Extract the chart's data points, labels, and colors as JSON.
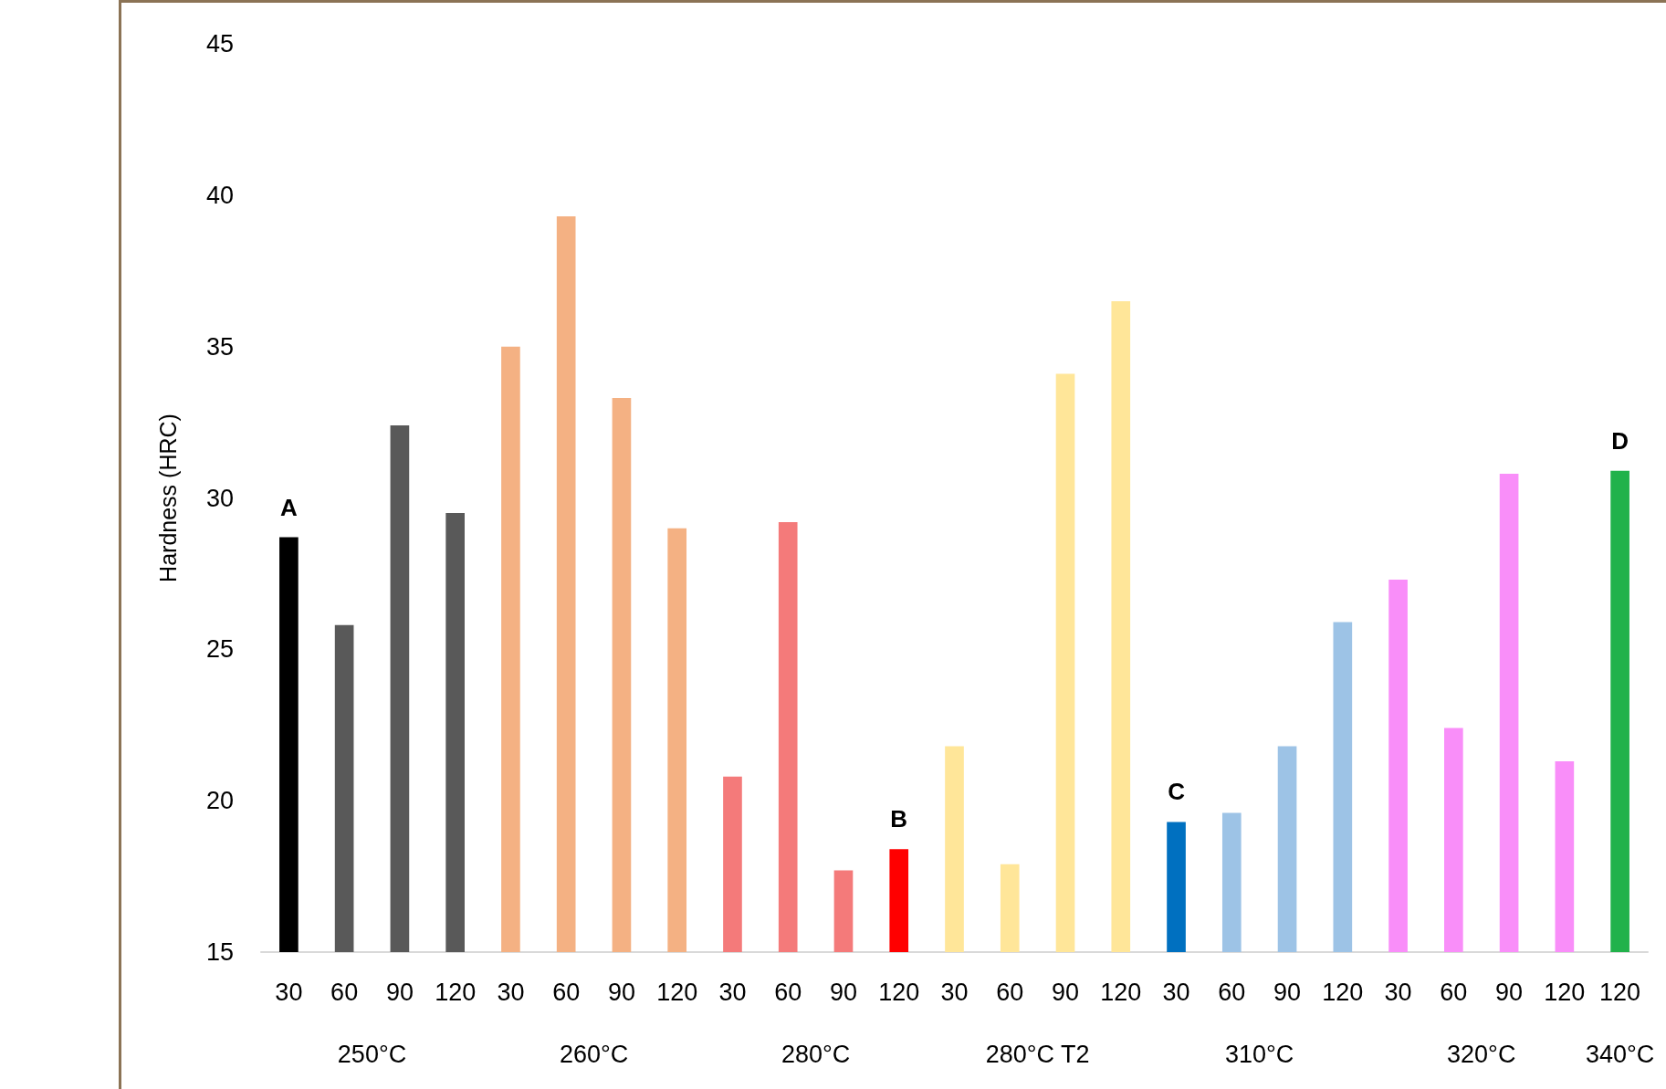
{
  "chart_data": {
    "type": "bar",
    "ylabel": "Hardness (HRC)",
    "categories": [
      "30",
      "60",
      "90",
      "120",
      "30",
      "60",
      "90",
      "120",
      "30",
      "60",
      "90",
      "120",
      "30",
      "60",
      "90",
      "120",
      "30",
      "60",
      "90",
      "120",
      "30",
      "60",
      "90",
      "120",
      "120"
    ],
    "annotations": [
      "250°C",
      "260°C",
      "280°C",
      "280°C T2",
      "310°C",
      "320°C",
      "340°C"
    ],
    "values": [
      28.7,
      25.8,
      32.4,
      29.5,
      35.0,
      39.3,
      33.3,
      29.0,
      20.8,
      29.2,
      17.7,
      18.4,
      21.8,
      17.9,
      34.1,
      36.5,
      19.3,
      19.6,
      21.8,
      25.9,
      27.3,
      22.4,
      30.8,
      21.3,
      30.9
    ],
    "colors": [
      "#000000",
      "#595959",
      "#595959",
      "#595959",
      "#f4b183",
      "#f4b183",
      "#f4b183",
      "#f4b183",
      "#f47a7a",
      "#f47a7a",
      "#f47a7a",
      "#ff0000",
      "#ffe699",
      "#ffe699",
      "#ffe699",
      "#ffe699",
      "#0070c0",
      "#9dc3e6",
      "#9dc3e6",
      "#9dc3e6",
      "#f98ef9",
      "#f98ef9",
      "#f98ef9",
      "#f98ef9",
      "#21b24b"
    ],
    "value_labels": [
      "A",
      null,
      null,
      null,
      null,
      null,
      null,
      null,
      null,
      null,
      null,
      "B",
      null,
      null,
      null,
      null,
      "C",
      null,
      null,
      null,
      null,
      null,
      null,
      null,
      "D"
    ],
    "ylim": [
      15,
      45
    ],
    "yticks": [
      15,
      20,
      25,
      30,
      35,
      40,
      45
    ],
    "grid": false
  }
}
